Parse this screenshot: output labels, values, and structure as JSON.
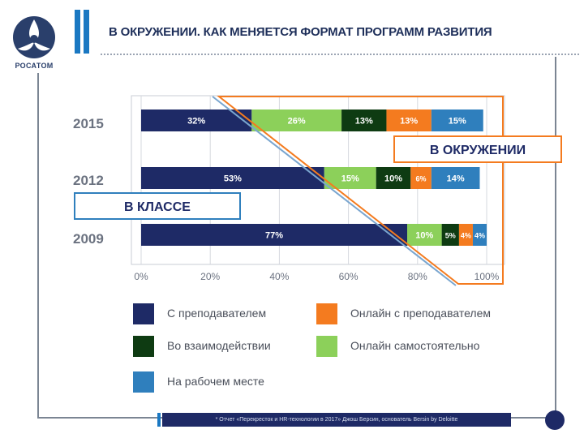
{
  "brand": {
    "name": "РОСАТОМ"
  },
  "header": {
    "title": "В ОКРУЖЕНИИ. КАК МЕНЯЕТСЯ ФОРМАТ ПРОГРАММ РАЗВИТИЯ"
  },
  "footer": {
    "note": "* Отчет «Перекресток и HR-технологии в 2017» Джош Берсин, основатель Bersin by Deloitte"
  },
  "chart_data": {
    "type": "bar",
    "orientation": "horizontal",
    "stacked": true,
    "categories": [
      "2015",
      "2012",
      "2009"
    ],
    "series": [
      {
        "name": "С преподавателем",
        "values": [
          32,
          53,
          77
        ],
        "color": "#1e2a66"
      },
      {
        "name": "Онлайн самостоятельно",
        "values": [
          26,
          15,
          10
        ],
        "color": "#8cd05a"
      },
      {
        "name": "Во взаимодействии",
        "values": [
          13,
          10,
          5
        ],
        "color": "#0e3b12"
      },
      {
        "name": "Онлайн с преподавателем",
        "values": [
          13,
          6,
          4
        ],
        "color": "#f47b1f"
      },
      {
        "name": "На рабочем месте",
        "values": [
          15,
          14,
          4
        ],
        "color": "#2f7fbd"
      }
    ],
    "data_labels": [
      [
        "32%",
        "26%",
        "13%",
        "13%",
        "15%"
      ],
      [
        "53%",
        "15%",
        "10%",
        "6%",
        "14%"
      ],
      [
        "77%",
        "10%",
        "5%",
        "4%",
        "4%"
      ]
    ],
    "xticks": [
      "0%",
      "20%",
      "40%",
      "60%",
      "80%",
      "100%"
    ],
    "xlim": [
      0,
      100
    ],
    "grid": true,
    "annotations": [
      {
        "text": "В ОКРУЖЕНИИ",
        "border_color": "#f47b1f"
      },
      {
        "text": "В КЛАССЕ",
        "border_color": "#2f7fbd"
      }
    ]
  },
  "legend": {
    "items": [
      {
        "label": "С преподавателем",
        "color": "#1e2a66"
      },
      {
        "label": "Онлайн с преподавателем",
        "color": "#f47b1f"
      },
      {
        "label": "Во взаимодействии",
        "color": "#0e3b12"
      },
      {
        "label": "Онлайн самостоятельно",
        "color": "#8cd05a"
      },
      {
        "label": "На рабочем месте",
        "color": "#2f7fbd"
      }
    ]
  },
  "colors": {
    "brand_blue": "#1a78c2",
    "navy": "#1e2a66",
    "orange": "#f47b1f"
  }
}
